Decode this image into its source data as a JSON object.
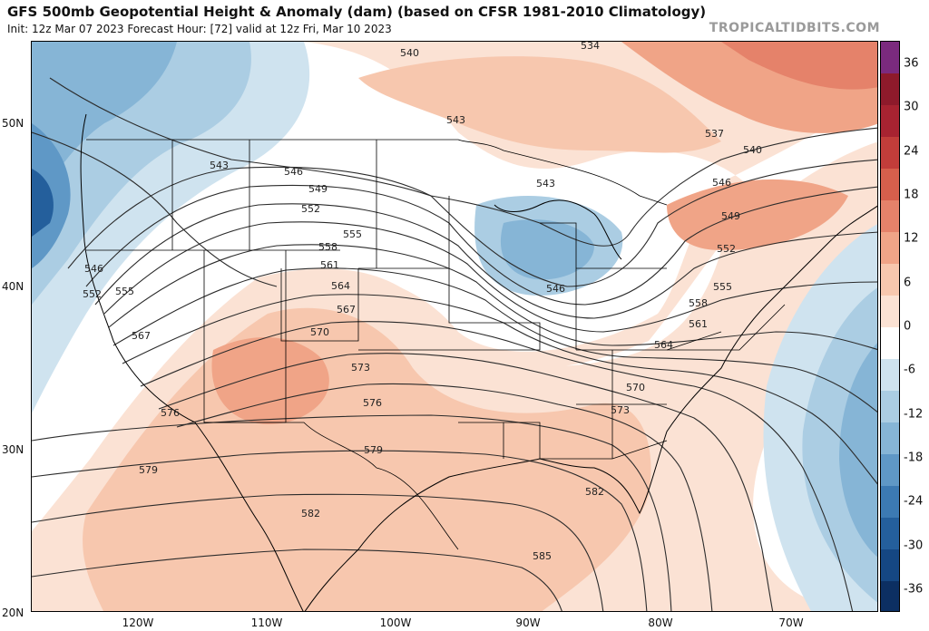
{
  "header": {
    "title": "GFS 500mb Geopotential Height & Anomaly (dam) (based on CFSR 1981-2010 Climatology)",
    "subtitle": "Init: 12z Mar 07 2023   Forecast Hour: [72]   valid at 12z Fri, Mar 10 2023",
    "brand": "TROPICALTIDBITS.COM"
  },
  "axes": {
    "lat_labels": [
      "50N",
      "40N",
      "30N",
      "20N"
    ],
    "lon_labels": [
      "120W",
      "110W",
      "100W",
      "90W",
      "80W",
      "70W"
    ]
  },
  "colorbar": {
    "ticks": [
      "36",
      "30",
      "24",
      "18",
      "12",
      "6",
      "0",
      "-6",
      "-12",
      "-18",
      "-24",
      "-30",
      "-36"
    ],
    "colors": [
      "#7b2a7e",
      "#8e1a2b",
      "#a82331",
      "#c23d3a",
      "#d65f4c",
      "#e5826a",
      "#f0a487",
      "#f7c7ae",
      "#fbe2d4",
      "#ffffff",
      "#cfe3ef",
      "#abcde3",
      "#86b5d6",
      "#5f98c6",
      "#3c7ab3",
      "#245f9c",
      "#154783",
      "#0c2f62"
    ]
  },
  "contour_labels": [
    "534",
    "537",
    "540",
    "540",
    "543",
    "543",
    "543",
    "546",
    "546",
    "546",
    "549",
    "549",
    "552",
    "552",
    "555",
    "555",
    "558",
    "561",
    "564",
    "567",
    "570",
    "573",
    "576",
    "579",
    "582",
    "585",
    "546",
    "552",
    "555",
    "558",
    "561",
    "564",
    "567",
    "570",
    "573",
    "576",
    "579",
    "582"
  ],
  "map_features": [
    "height-contours",
    "anomaly-shading",
    "coastlines",
    "state-borders",
    "country-borders"
  ]
}
